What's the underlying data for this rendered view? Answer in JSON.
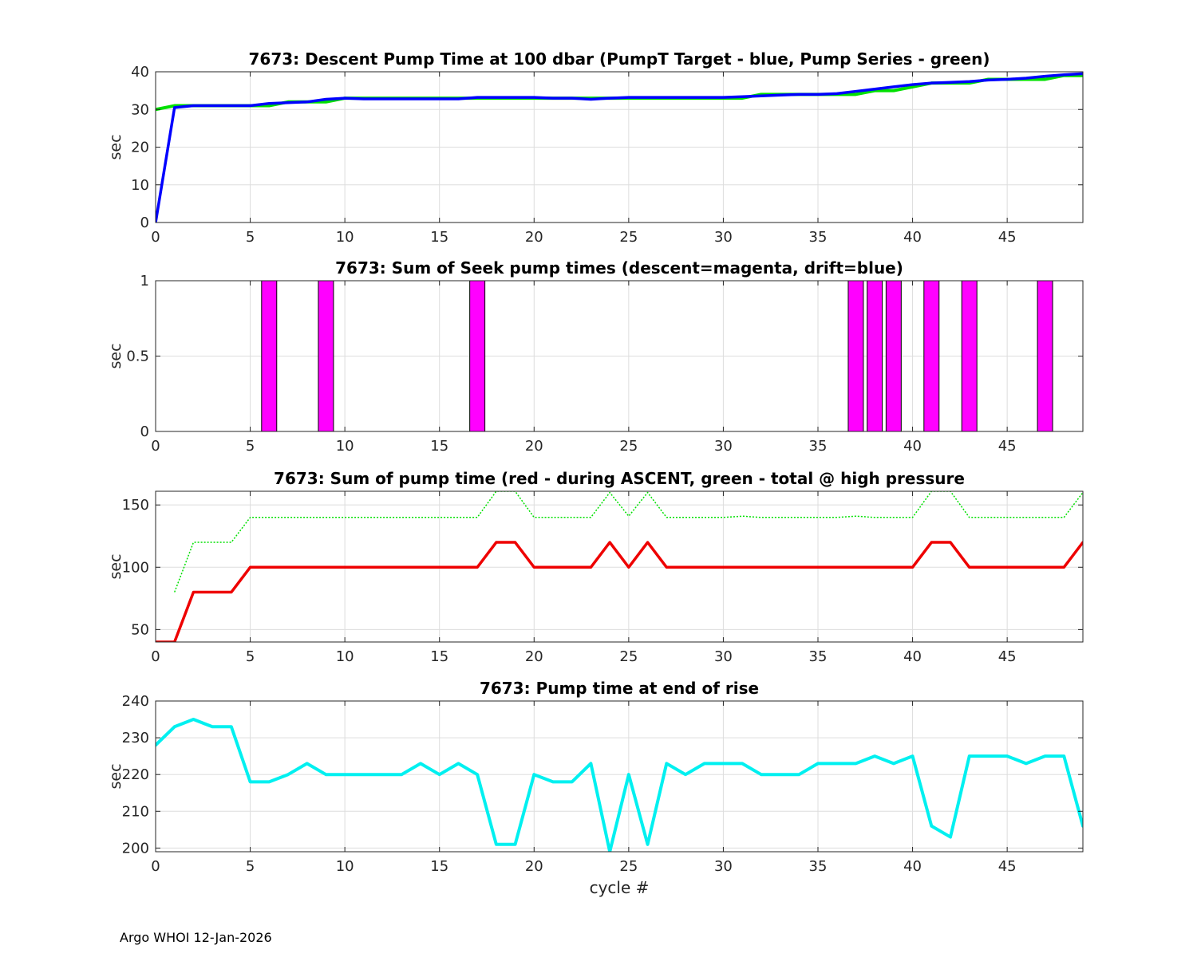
{
  "footer": "Argo WHOI 12-Jan-2026",
  "colors": {
    "blue": "#0000ff",
    "green": "#00e000",
    "magenta": "#ff00ff",
    "red": "#ee0000",
    "cyan": "#00f0f0",
    "grid": "#dddddd"
  },
  "chart_data": [
    {
      "type": "line",
      "title": "7673: Descent Pump Time at 100 dbar (PumpT Target - blue, Pump Series - green)",
      "xlabel": "",
      "ylabel": "sec",
      "xlim": [
        0,
        49
      ],
      "ylim": [
        0,
        40
      ],
      "xticks": [
        0,
        5,
        10,
        15,
        20,
        25,
        30,
        35,
        40,
        45
      ],
      "yticks": [
        0,
        10,
        20,
        30,
        40
      ],
      "grid": true,
      "x": [
        0,
        1,
        2,
        3,
        4,
        5,
        6,
        7,
        8,
        9,
        10,
        11,
        12,
        13,
        14,
        15,
        16,
        17,
        18,
        19,
        20,
        21,
        22,
        23,
        24,
        25,
        26,
        27,
        28,
        29,
        30,
        31,
        32,
        33,
        34,
        35,
        36,
        37,
        38,
        39,
        40,
        41,
        42,
        43,
        44,
        45,
        46,
        47,
        48,
        49
      ],
      "series": [
        {
          "name": "Pump Series",
          "color": "green",
          "width": 4,
          "values": [
            30,
            31,
            31,
            31,
            31,
            31,
            31,
            32,
            32,
            32,
            33,
            33,
            33,
            33,
            33,
            33,
            33,
            33,
            33,
            33,
            33,
            33,
            33,
            33,
            33,
            33,
            33,
            33,
            33,
            33,
            33,
            33,
            34,
            34,
            34,
            34,
            34,
            34,
            35,
            35,
            36,
            37,
            37,
            37,
            38,
            38,
            38,
            38,
            39,
            39
          ]
        },
        {
          "name": "PumpT Target",
          "color": "blue",
          "width": 3.5,
          "values": [
            0,
            30.5,
            31,
            31,
            31,
            31,
            31.6,
            31.8,
            32,
            32.7,
            33,
            32.8,
            32.8,
            32.8,
            32.8,
            32.8,
            32.8,
            33.2,
            33.2,
            33.2,
            33.2,
            33,
            33,
            32.7,
            33,
            33.2,
            33.2,
            33.2,
            33.2,
            33.2,
            33.2,
            33.4,
            33.6,
            33.8,
            34,
            34,
            34.2,
            34.8,
            35.4,
            36,
            36.6,
            37,
            37.2,
            37.4,
            37.8,
            38,
            38.3,
            38.8,
            39.2,
            39.5
          ]
        }
      ]
    },
    {
      "type": "bar",
      "title": "7673: Sum of Seek pump times (descent=magenta, drift=blue)",
      "xlabel": "",
      "ylabel": "sec",
      "xlim": [
        0,
        49
      ],
      "ylim": [
        0,
        1
      ],
      "xticks": [
        0,
        5,
        10,
        15,
        20,
        25,
        30,
        35,
        40,
        45
      ],
      "yticks": [
        0,
        0.5,
        1
      ],
      "ytick_labels": [
        "0",
        "0.5",
        "1"
      ],
      "grid": true,
      "bar_width": 0.8,
      "series": [
        {
          "name": "descent",
          "color": "magenta",
          "x": [
            6,
            9,
            17,
            37,
            38,
            39,
            41,
            43,
            47
          ],
          "values": [
            1,
            1,
            1,
            1,
            1,
            1,
            1,
            1,
            1
          ]
        }
      ]
    },
    {
      "type": "line",
      "title": "7673: Sum of pump time (red - during ASCENT, green - total @ high pressure",
      "xlabel": "",
      "ylabel": "sec",
      "xlim": [
        0,
        49
      ],
      "ylim": [
        40,
        161
      ],
      "xticks": [
        0,
        5,
        10,
        15,
        20,
        25,
        30,
        35,
        40,
        45
      ],
      "yticks": [
        50,
        100,
        150
      ],
      "grid": true,
      "x": [
        0,
        1,
        2,
        3,
        4,
        5,
        6,
        7,
        8,
        9,
        10,
        11,
        12,
        13,
        14,
        15,
        16,
        17,
        18,
        19,
        20,
        21,
        22,
        23,
        24,
        25,
        26,
        27,
        28,
        29,
        30,
        31,
        32,
        33,
        34,
        35,
        36,
        37,
        38,
        39,
        40,
        41,
        42,
        43,
        44,
        45,
        46,
        47,
        48,
        49
      ],
      "series": [
        {
          "name": "total @ high pressure",
          "color": "green",
          "width": 1.5,
          "dash": "2,2",
          "values": [
            null,
            80,
            120,
            120,
            120,
            140,
            140,
            140,
            140,
            140,
            140,
            140,
            140,
            140,
            140,
            140,
            140,
            140,
            161,
            161,
            140,
            140,
            140,
            140,
            160,
            141,
            160,
            140,
            140,
            140,
            140,
            141,
            140,
            140,
            140,
            140,
            140,
            141,
            140,
            140,
            140,
            161,
            161,
            140,
            140,
            140,
            140,
            140,
            140,
            160
          ]
        },
        {
          "name": "during ASCENT",
          "color": "red",
          "width": 3.5,
          "values": [
            40,
            40,
            80,
            80,
            80,
            100,
            100,
            100,
            100,
            100,
            100,
            100,
            100,
            100,
            100,
            100,
            100,
            100,
            120,
            120,
            100,
            100,
            100,
            100,
            120,
            100,
            120,
            100,
            100,
            100,
            100,
            100,
            100,
            100,
            100,
            100,
            100,
            100,
            100,
            100,
            100,
            120,
            120,
            100,
            100,
            100,
            100,
            100,
            100,
            120
          ]
        }
      ]
    },
    {
      "type": "line",
      "title": "7673: Pump time at end of rise",
      "xlabel": "cycle #",
      "ylabel": "sec",
      "xlim": [
        0,
        49
      ],
      "ylim": [
        199,
        240
      ],
      "xticks": [
        0,
        5,
        10,
        15,
        20,
        25,
        30,
        35,
        40,
        45
      ],
      "yticks": [
        200,
        210,
        220,
        230,
        240
      ],
      "grid": true,
      "x": [
        0,
        1,
        2,
        3,
        4,
        5,
        6,
        7,
        8,
        9,
        10,
        11,
        12,
        13,
        14,
        15,
        16,
        17,
        18,
        19,
        20,
        21,
        22,
        23,
        24,
        25,
        26,
        27,
        28,
        29,
        30,
        31,
        32,
        33,
        34,
        35,
        36,
        37,
        38,
        39,
        40,
        41,
        42,
        43,
        44,
        45,
        46,
        47,
        48,
        49
      ],
      "series": [
        {
          "name": "Pump time at end of rise",
          "color": "cyan",
          "width": 4,
          "values": [
            228,
            233,
            235,
            233,
            233,
            218,
            218,
            220,
            223,
            220,
            220,
            220,
            220,
            220,
            223,
            220,
            223,
            220,
            201,
            201,
            220,
            218,
            218,
            223,
            199,
            220,
            201,
            223,
            220,
            223,
            223,
            223,
            220,
            220,
            220,
            223,
            223,
            223,
            225,
            223,
            225,
            206,
            203,
            225,
            225,
            225,
            223,
            225,
            225,
            206
          ]
        }
      ]
    }
  ]
}
